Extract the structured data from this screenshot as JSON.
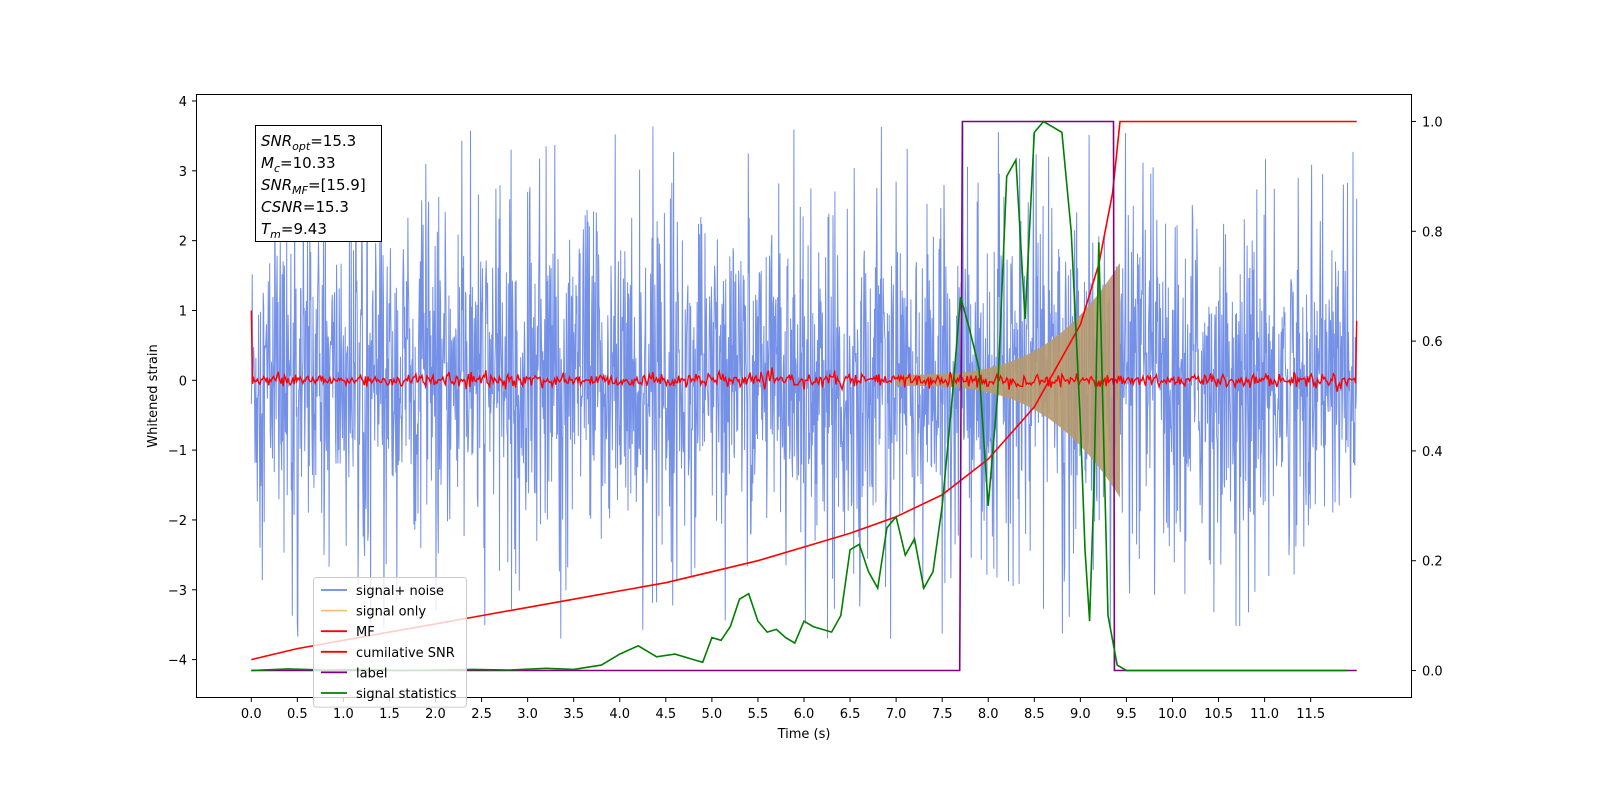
{
  "chart_data": {
    "type": "line",
    "xlabel": "Time (s)",
    "ylabel": "Whitened strain",
    "xlim": [
      -0.6,
      12.6
    ],
    "ylim": [
      -4.55,
      4.1
    ],
    "ylim_right": [
      -0.05,
      1.05
    ],
    "xticks": [
      "0.0",
      "0.5",
      "1.0",
      "1.5",
      "2.0",
      "2.5",
      "3.0",
      "3.5",
      "4.0",
      "4.5",
      "5.0",
      "5.5",
      "6.0",
      "6.5",
      "7.0",
      "7.5",
      "8.0",
      "8.5",
      "9.0",
      "9.5",
      "10.0",
      "10.5",
      "11.0",
      "11.5"
    ],
    "yticks_left": [
      "4",
      "3",
      "2",
      "1",
      "0",
      "−1",
      "−2",
      "−3",
      "−4"
    ],
    "yticks_right": [
      "1.0",
      "0.8",
      "0.6",
      "0.4",
      "0.2",
      "0.0"
    ],
    "grid": false,
    "legend_position": "lower-left",
    "annotation_box": {
      "lines": [
        {
          "sym": "SNR",
          "sub": "opt",
          "val": "=15.3"
        },
        {
          "sym": "M",
          "sub": "c",
          "val": "=10.33"
        },
        {
          "sym": "SNR",
          "sub": "MF",
          "val": "=[15.9]"
        },
        {
          "sym": "CSNR",
          "sub": "",
          "val": "=15.3"
        },
        {
          "sym": "T",
          "sub": "m",
          "val": "=9.43"
        }
      ]
    },
    "series": [
      {
        "name": "signal+ noise",
        "color": "#6d8ae6",
        "axis": "left",
        "kind": "noise",
        "x_range": [
          0.0,
          12.0
        ],
        "typical_range": [
          -2.4,
          2.4
        ],
        "extreme_range": [
          -3.7,
          3.7
        ]
      },
      {
        "name": "signal only",
        "color": "#f5c36b",
        "axis": "left",
        "kind": "chirp",
        "x_range": [
          7.0,
          9.43
        ],
        "amplitude_end": 1.6,
        "fill_color": "#b79a6e"
      },
      {
        "name": "MF",
        "color": "#ff0000",
        "axis": "left",
        "kind": "matched-filter",
        "x_range": [
          0.0,
          12.0
        ],
        "start": 1.0,
        "end": 0.85,
        "baseline": 0.0,
        "jitter": 0.08
      },
      {
        "name": "cumilative SNR",
        "color": "#ff0000",
        "axis": "right",
        "x": [
          0.0,
          0.5,
          1.0,
          1.5,
          2.0,
          2.5,
          3.0,
          3.5,
          4.0,
          4.5,
          5.0,
          5.5,
          6.0,
          6.5,
          7.0,
          7.5,
          8.0,
          8.5,
          9.0,
          9.2,
          9.35,
          9.43,
          12.0
        ],
        "y": [
          0.02,
          0.04,
          0.055,
          0.07,
          0.085,
          0.1,
          0.115,
          0.13,
          0.145,
          0.16,
          0.18,
          0.2,
          0.225,
          0.25,
          0.28,
          0.32,
          0.385,
          0.48,
          0.63,
          0.74,
          0.87,
          1.0,
          1.0
        ]
      },
      {
        "name": "label",
        "color": "#800080",
        "axis": "right",
        "x": [
          0.0,
          7.69,
          7.72,
          9.36,
          9.37,
          12.0
        ],
        "y": [
          0.0,
          0.0,
          1.0,
          1.0,
          0.0,
          0.0
        ]
      },
      {
        "name": "signal statistics",
        "color": "#008000",
        "axis": "right",
        "x": [
          0.0,
          0.4,
          0.8,
          1.2,
          1.6,
          2.0,
          2.4,
          2.8,
          3.2,
          3.5,
          3.8,
          4.0,
          4.2,
          4.4,
          4.6,
          4.8,
          4.9,
          5.0,
          5.1,
          5.2,
          5.3,
          5.4,
          5.5,
          5.6,
          5.7,
          5.8,
          5.9,
          6.0,
          6.1,
          6.2,
          6.3,
          6.4,
          6.5,
          6.6,
          6.7,
          6.8,
          6.9,
          7.0,
          7.1,
          7.2,
          7.3,
          7.4,
          7.5,
          7.6,
          7.7,
          7.8,
          7.9,
          8.0,
          8.1,
          8.2,
          8.3,
          8.4,
          8.5,
          8.6,
          8.7,
          8.8,
          8.9,
          9.0,
          9.05,
          9.1,
          9.15,
          9.2,
          9.3,
          9.4,
          9.5,
          10.0,
          11.0,
          11.9
        ],
        "y": [
          0.0,
          0.003,
          0.001,
          0.002,
          0.0,
          0.001,
          0.002,
          0.001,
          0.004,
          0.002,
          0.01,
          0.03,
          0.045,
          0.025,
          0.03,
          0.02,
          0.015,
          0.06,
          0.055,
          0.08,
          0.13,
          0.14,
          0.09,
          0.07,
          0.075,
          0.06,
          0.05,
          0.09,
          0.08,
          0.075,
          0.07,
          0.1,
          0.22,
          0.23,
          0.18,
          0.15,
          0.26,
          0.28,
          0.21,
          0.24,
          0.15,
          0.18,
          0.3,
          0.48,
          0.68,
          0.62,
          0.55,
          0.3,
          0.5,
          0.9,
          0.93,
          0.64,
          0.98,
          1.0,
          0.99,
          0.98,
          0.8,
          0.45,
          0.22,
          0.09,
          0.35,
          0.78,
          0.1,
          0.01,
          0.0,
          0.0,
          0.0,
          0.0
        ]
      }
    ]
  }
}
